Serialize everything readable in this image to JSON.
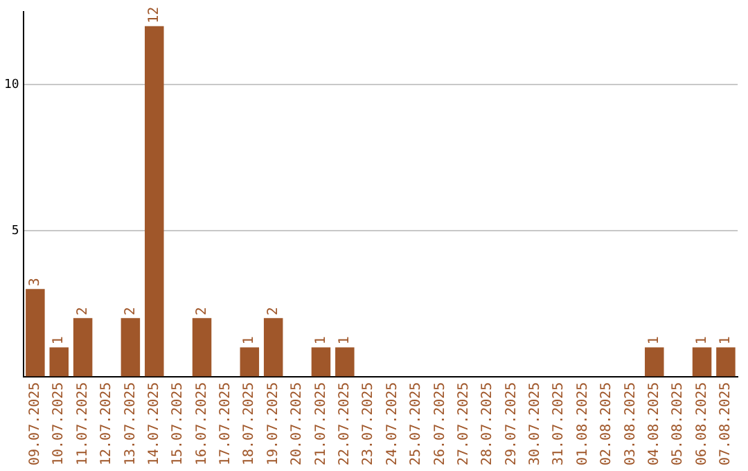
{
  "chart_data": {
    "type": "bar",
    "categories": [
      "09.07.2025",
      "10.07.2025",
      "11.07.2025",
      "12.07.2025",
      "13.07.2025",
      "14.07.2025",
      "15.07.2025",
      "16.07.2025",
      "17.07.2025",
      "18.07.2025",
      "19.07.2025",
      "20.07.2025",
      "21.07.2025",
      "22.07.2025",
      "23.07.2025",
      "24.07.2025",
      "25.07.2025",
      "26.07.2025",
      "27.07.2025",
      "28.07.2025",
      "29.07.2025",
      "30.07.2025",
      "31.07.2025",
      "01.08.2025",
      "02.08.2025",
      "03.08.2025",
      "04.08.2025",
      "05.08.2025",
      "06.08.2025",
      "07.08.2025"
    ],
    "values": [
      3,
      1,
      2,
      0,
      2,
      12,
      0,
      2,
      0,
      1,
      2,
      0,
      1,
      1,
      0,
      0,
      0,
      0,
      0,
      0,
      0,
      0,
      0,
      0,
      0,
      0,
      1,
      0,
      1,
      1
    ],
    "value_labels": [
      "3",
      "1",
      "2",
      null,
      "2",
      "12",
      null,
      "2",
      null,
      "1",
      "2",
      null,
      "1",
      "1",
      null,
      null,
      null,
      null,
      null,
      null,
      null,
      null,
      null,
      null,
      null,
      null,
      "1",
      null,
      "1",
      "1"
    ],
    "color": "#a0572a",
    "ylim": [
      0,
      12.5
    ],
    "yticks": [
      5,
      10
    ],
    "grid": "y",
    "legend": false
  }
}
